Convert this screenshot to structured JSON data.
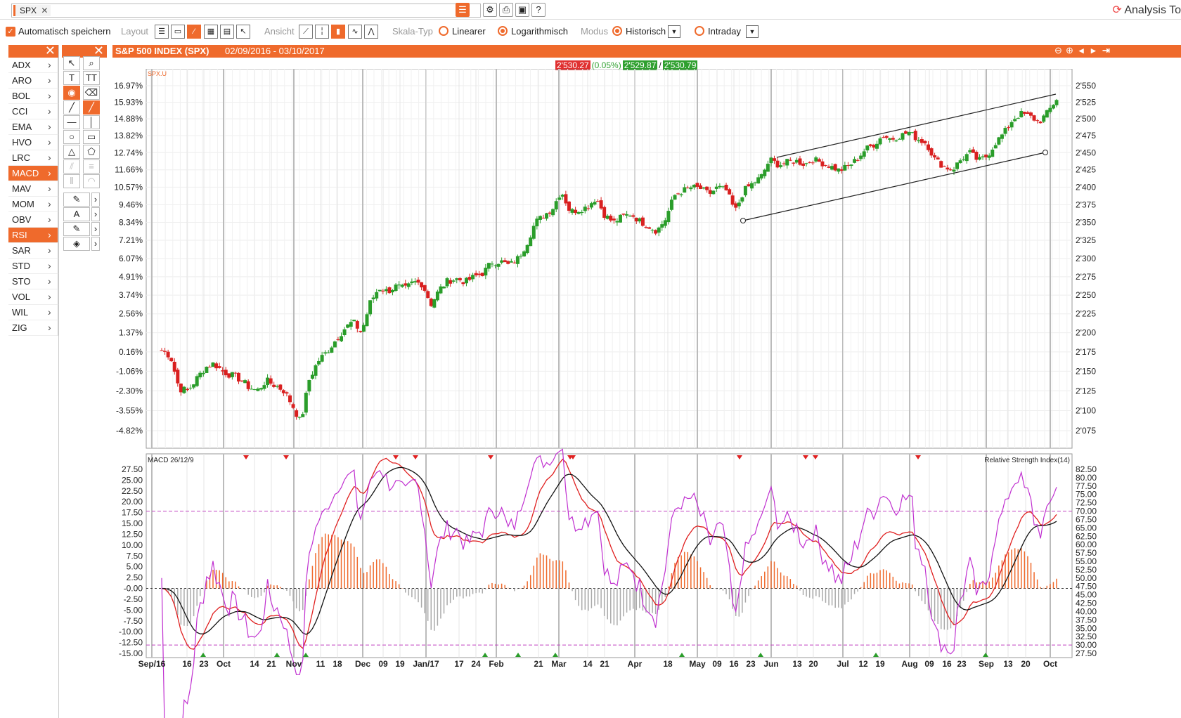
{
  "topbar": {
    "symbol": "SPX",
    "app_title": "Analysis To"
  },
  "toolbar": {
    "auto_save_label": "Automatisch speichern",
    "layout_label": "Layout",
    "view_label": "Ansicht",
    "scale_label": "Skala-Typ",
    "scale_linear": "Linearer",
    "scale_log": "Logarithmisch",
    "mode_label": "Modus",
    "mode_historic": "Historisch",
    "mode_intraday": "Intraday",
    "scale_selected": "Logarithmisch",
    "mode_selected": "Historisch"
  },
  "indicators": [
    "ADX",
    "ARO",
    "BOL",
    "CCI",
    "EMA",
    "HVO",
    "LRC",
    "MACD",
    "MAV",
    "MOM",
    "OBV",
    "RSI",
    "SAR",
    "STD",
    "STO",
    "VOL",
    "WIL",
    "ZIG"
  ],
  "indicators_selected": [
    "MACD",
    "RSI"
  ],
  "chart": {
    "title": "S&P 500 INDEX (SPX)",
    "date_range": "02/09/2016 - 03/10/2017",
    "last_price": "2'530.27",
    "change_pct": "(0.05%)",
    "bid": "2'529.87",
    "separator": "/",
    "ask": "2'530.79",
    "symbol_tag": "SPX.U",
    "macd_label": "MACD 26/12/9",
    "rsi_label": "Relative Strength Index(14)"
  },
  "chart_data": {
    "type": "candlestick",
    "price_axis_right": [
      "2'550",
      "2'525",
      "2'500",
      "2'475",
      "2'450",
      "2'425",
      "2'400",
      "2'375",
      "2'350",
      "2'325",
      "2'300",
      "2'275",
      "2'250",
      "2'225",
      "2'200",
      "2'175",
      "2'150",
      "2'125",
      "2'100",
      "2'075"
    ],
    "pct_axis_left": [
      "16.97%",
      "15.93%",
      "14.88%",
      "13.82%",
      "12.74%",
      "11.66%",
      "10.57%",
      "9.46%",
      "8.34%",
      "7.21%",
      "6.07%",
      "4.91%",
      "3.74%",
      "2.56%",
      "1.37%",
      "0.16%",
      "-1.06%",
      "-2.30%",
      "-3.55%",
      "-4.82%"
    ],
    "scale": "log",
    "macd_axis": [
      "27.50",
      "25.00",
      "22.50",
      "20.00",
      "17.50",
      "15.00",
      "12.50",
      "10.00",
      "7.50",
      "5.00",
      "2.50",
      "-0.00",
      "-2.50",
      "-5.00",
      "-7.50",
      "-10.00",
      "-12.50",
      "-15.00"
    ],
    "rsi_axis": [
      "82.50",
      "80.00",
      "77.50",
      "75.00",
      "72.50",
      "70.00",
      "67.50",
      "65.00",
      "62.50",
      "60.00",
      "57.50",
      "55.00",
      "52.50",
      "50.00",
      "47.50",
      "45.00",
      "42.50",
      "40.00",
      "37.50",
      "35.00",
      "32.50",
      "30.00",
      "27.50"
    ],
    "rsi_levels": [
      70,
      30
    ],
    "x_labels": [
      "Sep/16",
      "16",
      "23",
      "Oct",
      "14",
      "21",
      "Nov",
      "11",
      "18",
      "Dec",
      "09",
      "19",
      "Jan/17",
      "17",
      "24",
      "Feb",
      "21",
      "Mar",
      "14",
      "21",
      "Apr",
      "18",
      "May",
      "09",
      "16",
      "23",
      "Jun",
      "13",
      "20",
      "Jul",
      "12",
      "19",
      "Aug",
      "09",
      "16",
      "23",
      "Sep",
      "13",
      "20",
      "Oct"
    ],
    "close_series_approx": [
      2177,
      2170,
      2128,
      2125,
      2140,
      2155,
      2160,
      2150,
      2145,
      2140,
      2130,
      2125,
      2138,
      2132,
      2126,
      2108,
      2085,
      2140,
      2163,
      2175,
      2190,
      2205,
      2215,
      2200,
      2240,
      2260,
      2255,
      2262,
      2258,
      2268,
      2265,
      2238,
      2258,
      2270,
      2272,
      2268,
      2275,
      2280,
      2295,
      2296,
      2290,
      2300,
      2320,
      2350,
      2360,
      2370,
      2395,
      2365,
      2368,
      2372,
      2385,
      2360,
      2350,
      2358,
      2362,
      2352,
      2345,
      2338,
      2355,
      2388,
      2395,
      2400,
      2398,
      2390,
      2400,
      2395,
      2365,
      2395,
      2405,
      2415,
      2440,
      2432,
      2436,
      2438,
      2433,
      2440,
      2435,
      2430,
      2424,
      2430,
      2440,
      2455,
      2462,
      2475,
      2470,
      2475,
      2480,
      2470,
      2464,
      2440,
      2430,
      2425,
      2440,
      2450,
      2438,
      2445,
      2465,
      2480,
      2500,
      2508,
      2503,
      2495,
      2510,
      2530
    ],
    "candles_visible_days_approx": 280
  }
}
